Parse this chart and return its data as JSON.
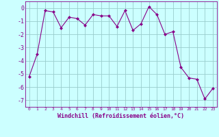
{
  "x": [
    0,
    1,
    2,
    3,
    4,
    5,
    6,
    7,
    8,
    9,
    10,
    11,
    12,
    13,
    14,
    15,
    16,
    17,
    18,
    19,
    20,
    21,
    22,
    23
  ],
  "y": [
    -5.2,
    -3.5,
    -0.2,
    -0.3,
    -1.5,
    -0.7,
    -0.8,
    -1.3,
    -0.5,
    -0.6,
    -0.6,
    -1.4,
    -0.2,
    -1.7,
    -1.2,
    0.1,
    -0.5,
    -2.0,
    -1.8,
    -4.5,
    -5.3,
    -5.4,
    -6.9,
    -6.1
  ],
  "line_color": "#880088",
  "marker_color": "#880088",
  "bg_color": "#ccffff",
  "grid_color": "#99cccc",
  "xlabel": "Windchill (Refroidissement éolien,°C)",
  "ylim": [
    -7.5,
    0.5
  ],
  "xlim": [
    -0.5,
    23.5
  ],
  "yticks": [
    0,
    -1,
    -2,
    -3,
    -4,
    -5,
    -6,
    -7
  ],
  "xticks": [
    0,
    1,
    2,
    3,
    4,
    5,
    6,
    7,
    8,
    9,
    10,
    11,
    12,
    13,
    14,
    15,
    16,
    17,
    18,
    19,
    20,
    21,
    22,
    23
  ],
  "tick_color": "#880088",
  "spine_color": "#880088",
  "label_color": "#880088",
  "xlabel_color": "#880088"
}
